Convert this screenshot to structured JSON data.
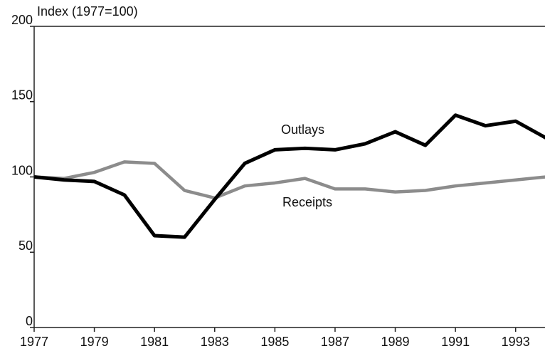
{
  "chart_data": {
    "type": "line",
    "ylabel": "Index (1977=100)",
    "x": [
      1977,
      1978,
      1979,
      1980,
      1981,
      1982,
      1983,
      1984,
      1985,
      1986,
      1987,
      1988,
      1989,
      1990,
      1991,
      1992,
      1993,
      1994
    ],
    "series": [
      {
        "name": "Outlays",
        "color": "#000000",
        "values": [
          100,
          98,
          97,
          88,
          61,
          60,
          85,
          109,
          118,
          119,
          118,
          122,
          130,
          121,
          141,
          134,
          137,
          126
        ]
      },
      {
        "name": "Receipts",
        "color": "#8c8c8c",
        "values": [
          100,
          99,
          103,
          110,
          109,
          91,
          86,
          94,
          96,
          99,
          92,
          92,
          90,
          91,
          94,
          96,
          98,
          100
        ]
      }
    ],
    "xlim": [
      1977,
      1994
    ],
    "xticks": [
      1977,
      1979,
      1981,
      1983,
      1985,
      1987,
      1989,
      1991,
      1993
    ],
    "ylim": [
      0,
      200
    ],
    "yticks": [
      0,
      50,
      100,
      150,
      200
    ],
    "grid": false
  }
}
